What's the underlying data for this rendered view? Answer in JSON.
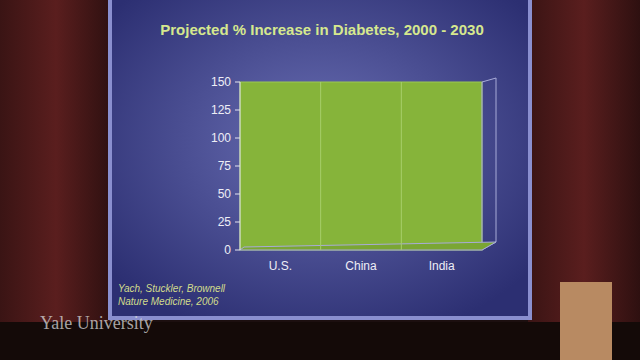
{
  "chart_data": {
    "type": "bar",
    "title": "Projected % Increase in Diabetes, 2000 - 2030",
    "categories": [
      "U.S.",
      "China",
      "India"
    ],
    "values": [
      null,
      null,
      null
    ],
    "ylim": [
      0,
      150
    ],
    "yticks": [
      0,
      25,
      50,
      75,
      100,
      125,
      150
    ],
    "grid": false,
    "annotations": [
      "Yach, Stuckler, Brownell",
      "Nature Medicine, 2006",
      "Yale University"
    ]
  }
}
